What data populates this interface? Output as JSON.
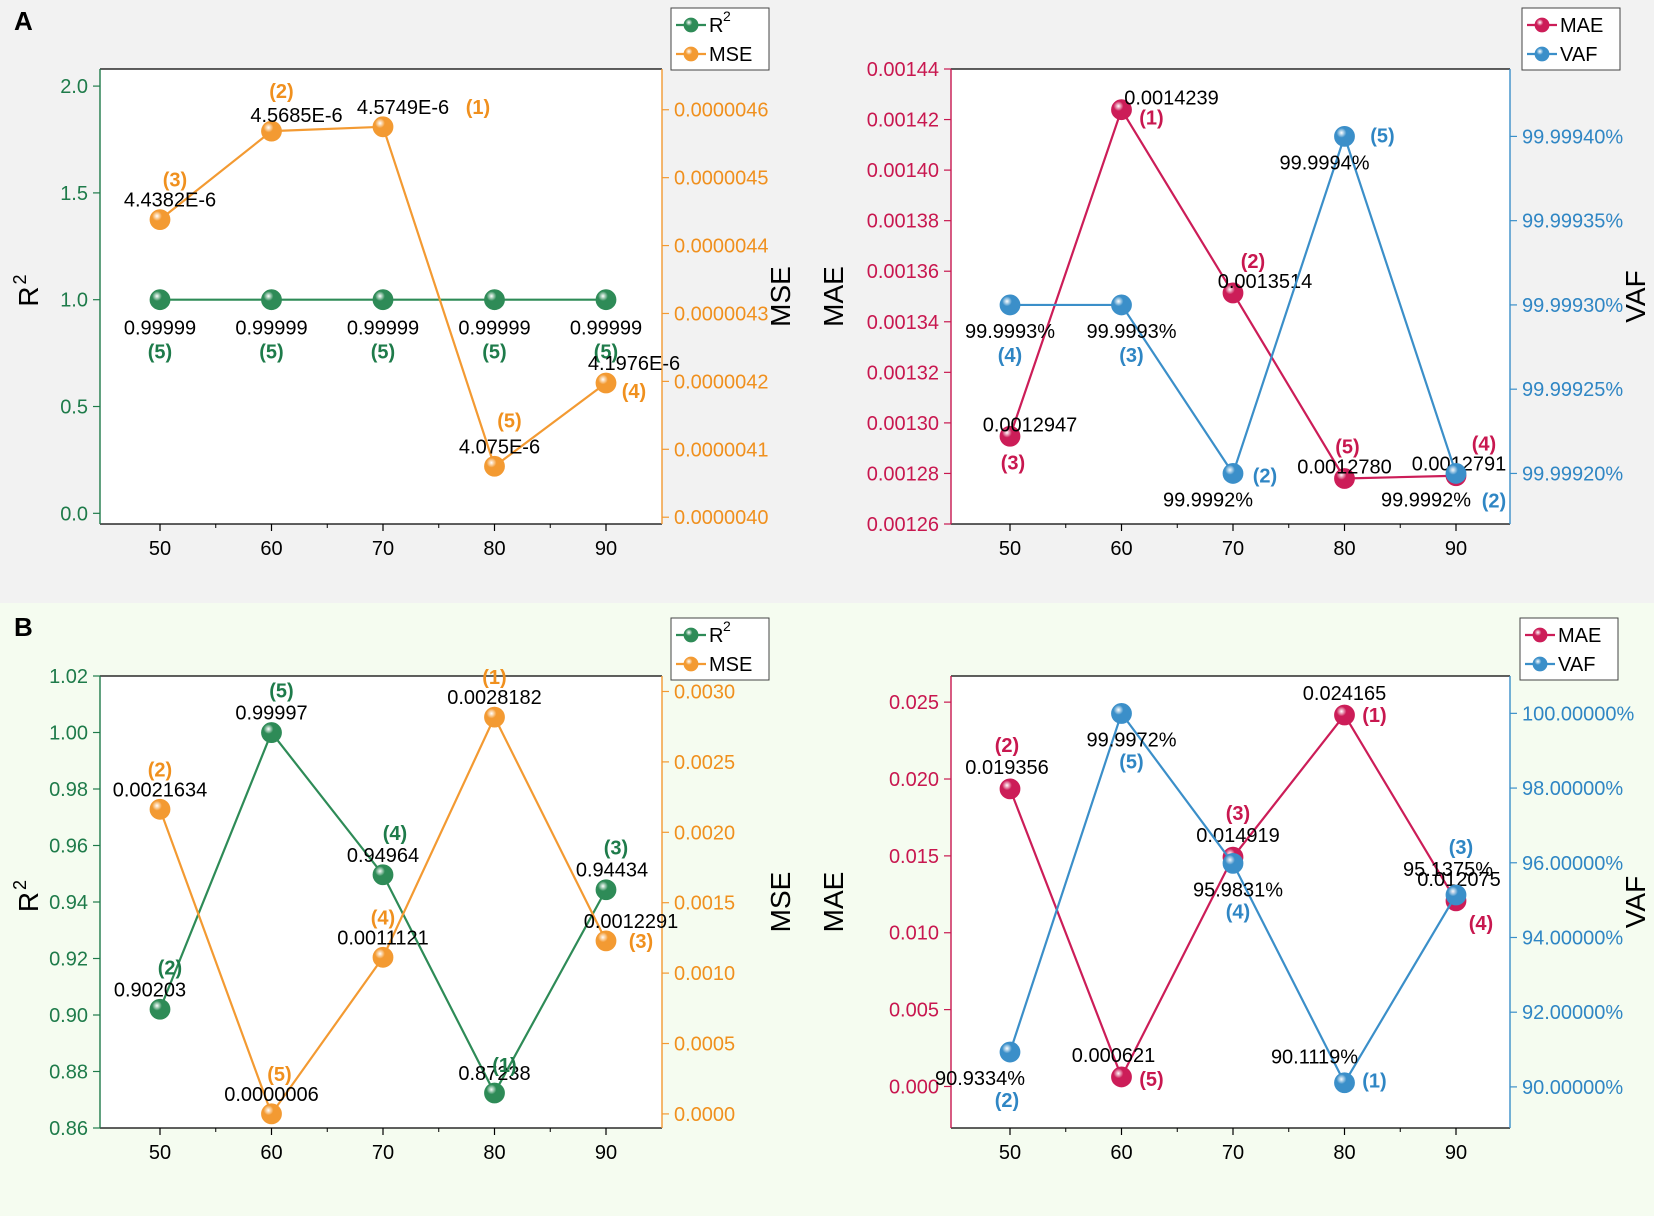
{
  "panels": {
    "a_label": "A",
    "b_label": "B",
    "a_bg": "#f2f2f2",
    "b_bg": "#f5fcf0"
  },
  "colors": {
    "green": "#2e8b57",
    "green_text": "#1e7b4a",
    "orange": "#f39a32",
    "orange_text": "#f0901e",
    "red": "#cc1d58",
    "red_text": "#c8174f",
    "blue": "#3b8fc9",
    "blue_text": "#2f86c4"
  },
  "chart_data": [
    {
      "id": "a-left",
      "type": "line",
      "x": [
        50,
        60,
        70,
        80,
        90
      ],
      "x_ticks": [
        "50",
        "60",
        "70",
        "80",
        "90"
      ],
      "left_axis": {
        "label": "R2",
        "ylim": [
          -0.05,
          2.08
        ],
        "ticks": [
          0.0,
          0.5,
          1.0,
          1.5,
          2.0
        ],
        "tick_labels": [
          "0.0",
          "0.5",
          "1.0",
          "1.5",
          "2.0"
        ]
      },
      "right_axis": {
        "label": "MSE",
        "ylim": [
          3.99e-06,
          4.66e-06
        ],
        "ticks": [
          4e-06,
          4.1e-06,
          4.2e-06,
          4.3e-06,
          4.4e-06,
          4.5e-06,
          4.6e-06
        ],
        "tick_labels": [
          "0.0000040",
          "0.0000041",
          "0.0000042",
          "0.0000043",
          "0.0000044",
          "0.0000045",
          "0.0000046"
        ]
      },
      "legend": [
        "R2",
        "MSE"
      ],
      "series": [
        {
          "name": "R2",
          "axis": "left",
          "color": "green",
          "values": [
            0.99999,
            0.99999,
            0.99999,
            0.99999,
            0.99999
          ],
          "labels": [
            "0.99999",
            "0.99999",
            "0.99999",
            "0.99999",
            "0.99999"
          ],
          "ranks": [
            "(5)",
            "(5)",
            "(5)",
            "(5)",
            "(5)"
          ]
        },
        {
          "name": "MSE",
          "axis": "right",
          "color": "orange",
          "values": [
            4.4382e-06,
            4.5685e-06,
            4.5749e-06,
            4.075e-06,
            4.1976e-06
          ],
          "labels": [
            "4.4382E-6",
            "4.5685E-6",
            "4.5749E-6",
            "4.075E-6",
            "4.1976E-6"
          ],
          "ranks": [
            "(3)",
            "(2)",
            "(1)",
            "(5)",
            "(4)"
          ]
        }
      ]
    },
    {
      "id": "a-right",
      "type": "line",
      "x": [
        50,
        60,
        70,
        80,
        90
      ],
      "x_ticks": [
        "50",
        "60",
        "70",
        "80",
        "90"
      ],
      "left_axis": {
        "label": "MAE",
        "ylim": [
          0.00126,
          0.00144
        ],
        "ticks": [
          0.00126,
          0.00128,
          0.0013,
          0.00132,
          0.00134,
          0.00136,
          0.00138,
          0.0014,
          0.00142,
          0.00144
        ],
        "tick_labels": [
          "0.00126",
          "0.00128",
          "0.00130",
          "0.00132",
          "0.00134",
          "0.00136",
          "0.00138",
          "0.00140",
          "0.00142",
          "0.00144"
        ]
      },
      "right_axis": {
        "label": "VAF",
        "ylim": [
          99.99917,
          99.99944
        ],
        "ticks": [
          99.9992,
          99.99925,
          99.9993,
          99.99935,
          99.9994
        ],
        "tick_labels": [
          "99.99920%",
          "99.99925%",
          "99.99930%",
          "99.99935%",
          "99.99940%"
        ]
      },
      "legend": [
        "MAE",
        "VAF"
      ],
      "series": [
        {
          "name": "MAE",
          "axis": "left",
          "color": "red",
          "values": [
            0.0012947,
            0.0014239,
            0.0013514,
            0.001278,
            0.0012791
          ],
          "labels": [
            "0.0012947",
            "0.0014239",
            "0.0013514",
            "0.0012780",
            "0.0012791"
          ],
          "ranks": [
            "(3)",
            "(1)",
            "(2)",
            "(5)",
            "(4)"
          ]
        },
        {
          "name": "VAF",
          "axis": "right",
          "color": "blue",
          "values": [
            99.9993,
            99.9993,
            99.9992,
            99.9994,
            99.9992
          ],
          "labels": [
            "99.9993%",
            "99.9993%",
            "99.9992%",
            "99.9994%",
            "99.9992%"
          ],
          "ranks": [
            "(4)",
            "(3)",
            "(2)",
            "(5)",
            "(2)"
          ]
        }
      ]
    },
    {
      "id": "b-left",
      "type": "line",
      "x": [
        50,
        60,
        70,
        80,
        90
      ],
      "x_ticks": [
        "50",
        "60",
        "70",
        "80",
        "90"
      ],
      "left_axis": {
        "label": "R2",
        "ylim": [
          0.86,
          1.02
        ],
        "ticks": [
          0.86,
          0.88,
          0.9,
          0.92,
          0.94,
          0.96,
          0.98,
          1.0,
          1.02
        ],
        "tick_labels": [
          "0.86",
          "0.88",
          "0.90",
          "0.92",
          "0.94",
          "0.96",
          "0.98",
          "1.00",
          "1.02"
        ]
      },
      "right_axis": {
        "label": "MSE",
        "ylim": [
          -0.0001,
          0.00311
        ],
        "ticks": [
          0.0,
          0.0005,
          0.001,
          0.0015,
          0.002,
          0.0025,
          0.003
        ],
        "tick_labels": [
          "0.0000",
          "0.0005",
          "0.0010",
          "0.0015",
          "0.0020",
          "0.0025",
          "0.0030"
        ]
      },
      "legend": [
        "R2",
        "MSE"
      ],
      "series": [
        {
          "name": "R2",
          "axis": "left",
          "color": "green",
          "values": [
            0.90203,
            0.99997,
            0.94964,
            0.87238,
            0.94434
          ],
          "labels": [
            "0.90203",
            "0.99997",
            "0.94964",
            "0.87238",
            "0.94434"
          ],
          "ranks": [
            "(2)",
            "(5)",
            "(4)",
            "(1)",
            "(3)"
          ]
        },
        {
          "name": "MSE",
          "axis": "right",
          "color": "orange",
          "values": [
            0.0021634,
            6e-07,
            0.0011121,
            0.0028182,
            0.0012291
          ],
          "labels": [
            "0.0021634",
            "0.0000006",
            "0.0011121",
            "0.0028182",
            "0.0012291"
          ],
          "ranks": [
            "(2)",
            "(5)",
            "(4)",
            "(1)",
            "(3)"
          ]
        }
      ]
    },
    {
      "id": "b-right",
      "type": "line",
      "x": [
        50,
        60,
        70,
        80,
        90
      ],
      "x_ticks": [
        "50",
        "60",
        "70",
        "80",
        "90"
      ],
      "left_axis": {
        "label": "MAE",
        "ylim": [
          -0.0027,
          0.0267
        ],
        "ticks": [
          0.0,
          0.005,
          0.01,
          0.015,
          0.02,
          0.025
        ],
        "tick_labels": [
          "0.000",
          "0.005",
          "0.010",
          "0.015",
          "0.020",
          "0.025"
        ]
      },
      "right_axis": {
        "label": "VAF",
        "ylim": [
          88.9,
          101.0
        ],
        "ticks": [
          90,
          92,
          94,
          96,
          98,
          100
        ],
        "tick_labels": [
          "90.00000%",
          "92.00000%",
          "94.00000%",
          "96.00000%",
          "98.00000%",
          "100.00000%"
        ]
      },
      "legend": [
        "MAE",
        "VAF"
      ],
      "series": [
        {
          "name": "MAE",
          "axis": "left",
          "color": "red",
          "values": [
            0.019356,
            0.000621,
            0.014919,
            0.024165,
            0.012075
          ],
          "labels": [
            "0.019356",
            "0.000621",
            "0.014919",
            "0.024165",
            "0.012075"
          ],
          "ranks": [
            "(2)",
            "(5)",
            "(3)",
            "(1)",
            "(4)"
          ]
        },
        {
          "name": "VAF",
          "axis": "right",
          "color": "blue",
          "values": [
            90.9334,
            99.9972,
            95.9831,
            90.1119,
            95.1375
          ],
          "labels": [
            "90.9334%",
            "99.9972%",
            "95.9831%",
            "90.1119%",
            "95.1375%"
          ],
          "ranks": [
            "(2)",
            "(5)",
            "(4)",
            "(1)",
            "(3)"
          ]
        }
      ]
    }
  ]
}
